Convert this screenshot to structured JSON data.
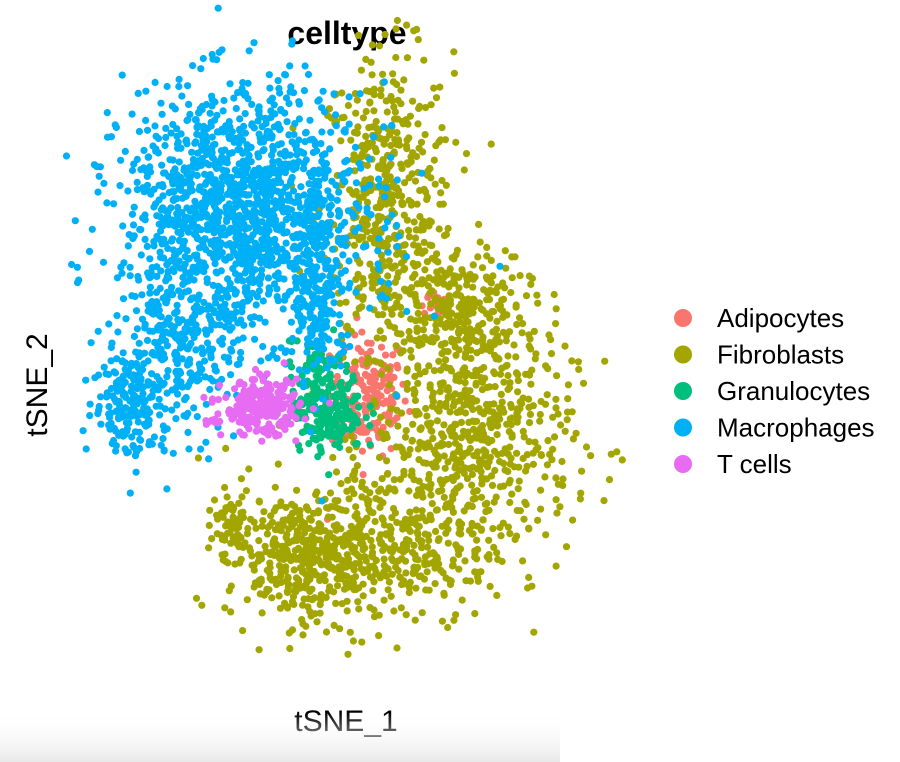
{
  "chart_data": {
    "type": "scatter",
    "title": "celltype",
    "xlabel": "tSNE_1",
    "ylabel": "tSNE_2",
    "grid": false,
    "axes_visible": false,
    "legend_position": "right",
    "xlim": [
      -45,
      45
    ],
    "ylim": [
      -42,
      45
    ],
    "series": [
      {
        "name": "Adipocytes",
        "color": "#F8766D",
        "clusters": [
          {
            "cx": 4,
            "cy": 0,
            "sx": 3.2,
            "sy": 4.5,
            "n": 170
          },
          {
            "cx": 14.5,
            "cy": 14,
            "sx": 1.2,
            "sy": 1.0,
            "n": 18
          },
          {
            "cx": -2.5,
            "cy": -17,
            "sx": 0.4,
            "sy": 0.6,
            "n": 2
          }
        ]
      },
      {
        "name": "Fibroblasts",
        "color": "#A3A500",
        "clusters": [
          {
            "cx": 7,
            "cy": 28,
            "sx": 5.5,
            "sy": 11,
            "n": 480
          },
          {
            "cx": 19,
            "cy": 13,
            "sx": 5.5,
            "sy": 4,
            "n": 220
          },
          {
            "cx": 21,
            "cy": -6,
            "sx": 8.5,
            "sy": 9,
            "n": 620
          },
          {
            "cx": 6,
            "cy": -22,
            "sx": 9,
            "sy": 6,
            "n": 380
          },
          {
            "cx": -8,
            "cy": -24,
            "sx": 6,
            "sy": 4.5,
            "n": 320
          },
          {
            "cx": -19,
            "cy": -19,
            "sx": 1.6,
            "sy": 2.5,
            "n": 55
          }
        ]
      },
      {
        "name": "Granulocytes",
        "color": "#00BF7D",
        "clusters": [
          {
            "cx": -3,
            "cy": -2,
            "sx": 3.0,
            "sy": 3.2,
            "n": 240
          },
          {
            "cx": -5,
            "cy": 5,
            "sx": 0.8,
            "sy": 1.5,
            "n": 22
          },
          {
            "cx": -9,
            "cy": 8,
            "sx": 0.6,
            "sy": 0.3,
            "n": 3
          }
        ]
      },
      {
        "name": "Macrophages",
        "color": "#00B0F6",
        "clusters": [
          {
            "cx": -17,
            "cy": 27,
            "sx": 10,
            "sy": 9,
            "n": 1450
          },
          {
            "cx": -28,
            "cy": 6,
            "sx": 5,
            "sy": 6,
            "n": 280
          },
          {
            "cx": -36,
            "cy": -1,
            "sx": 3,
            "sy": 4,
            "n": 170
          },
          {
            "cx": -4,
            "cy": 14,
            "sx": 2.2,
            "sy": 7,
            "n": 170
          },
          {
            "cx": 10,
            "cy": 12,
            "sx": 0.3,
            "sy": 0.3,
            "n": 1
          },
          {
            "cx": -4,
            "cy": -16,
            "sx": 0.3,
            "sy": 0.3,
            "n": 1
          }
        ]
      },
      {
        "name": "T cells",
        "color": "#E76BF3",
        "clusters": [
          {
            "cx": -14,
            "cy": -2,
            "sx": 3.2,
            "sy": 2.0,
            "n": 240
          },
          {
            "cx": -22,
            "cy": -4,
            "sx": 1.0,
            "sy": 0.3,
            "n": 9
          }
        ]
      }
    ]
  }
}
